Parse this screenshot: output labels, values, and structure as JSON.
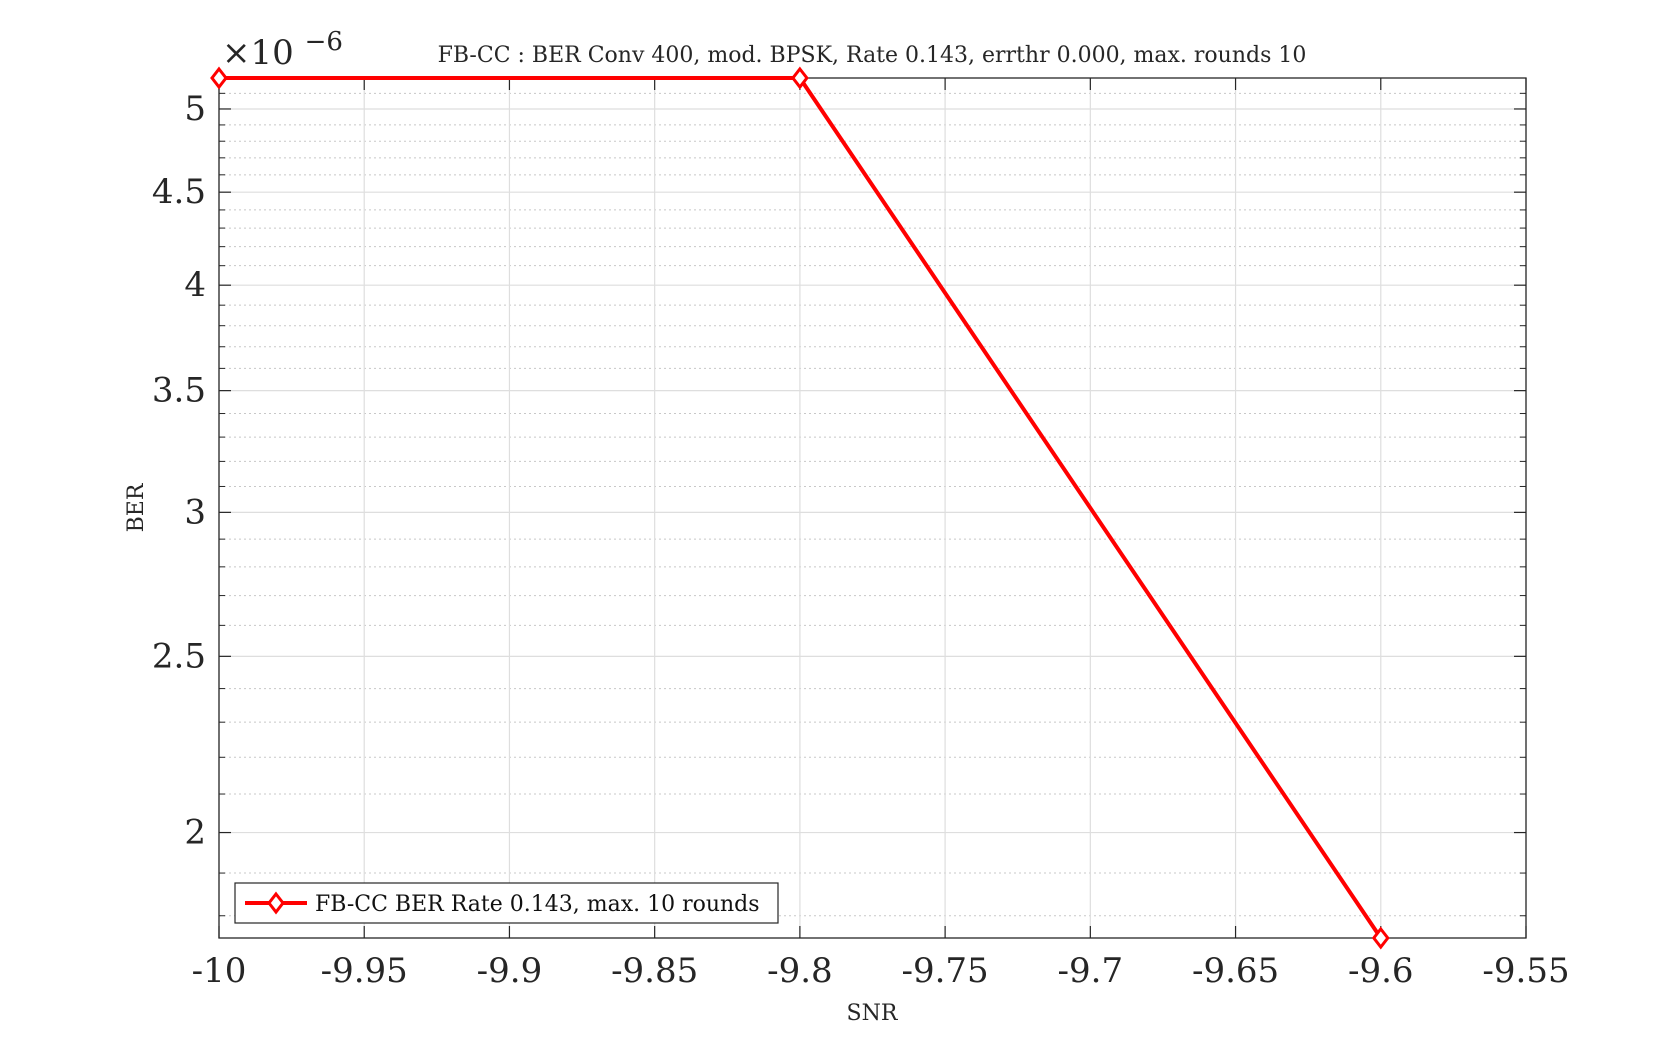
{
  "chart_data": {
    "type": "line",
    "title": "FB-CC : BER Conv 400, mod. BPSK, Rate 0.143, errthr 0.000, max. rounds 10",
    "xlabel": "SNR",
    "ylabel": "BER",
    "y_exponent_label": "×10",
    "y_exponent_power": "−6",
    "xlim": [
      -10,
      -9.55
    ],
    "ylim": [
      1.75,
      5.2
    ],
    "y_scale": "log",
    "grid": true,
    "minor_grid": true,
    "legend_position": "bottom-left",
    "x_ticks": [
      -10,
      -9.95,
      -9.9,
      -9.85,
      -9.8,
      -9.75,
      -9.7,
      -9.65,
      -9.6,
      -9.55
    ],
    "x_tick_labels": [
      "-10",
      "-9.95",
      "-9.9",
      "-9.85",
      "-9.8",
      "-9.75",
      "-9.7",
      "-9.65",
      "-9.6",
      "-9.55"
    ],
    "y_ticks": [
      2,
      2.5,
      3,
      3.5,
      4,
      4.5,
      5
    ],
    "y_tick_labels": [
      "2",
      "2.5",
      "3",
      "3.5",
      "4",
      "4.5",
      "5"
    ],
    "y_minor_ticks": [
      1.8,
      1.9,
      2.1,
      2.2,
      2.3,
      2.4,
      2.6,
      2.7,
      2.8,
      2.9,
      3.1,
      3.2,
      3.3,
      3.4,
      3.6,
      3.7,
      3.8,
      3.9,
      4.1,
      4.2,
      4.3,
      4.4,
      4.6,
      4.7,
      4.8,
      4.9,
      5.1
    ],
    "series": [
      {
        "name": "FB-CC BER Rate 0.143, max. 10 rounds",
        "color": "#ff0000",
        "marker": "diamond",
        "x": [
          -10,
          -9.8,
          -9.6
        ],
        "y": [
          5.2,
          5.2,
          1.75
        ]
      }
    ]
  }
}
